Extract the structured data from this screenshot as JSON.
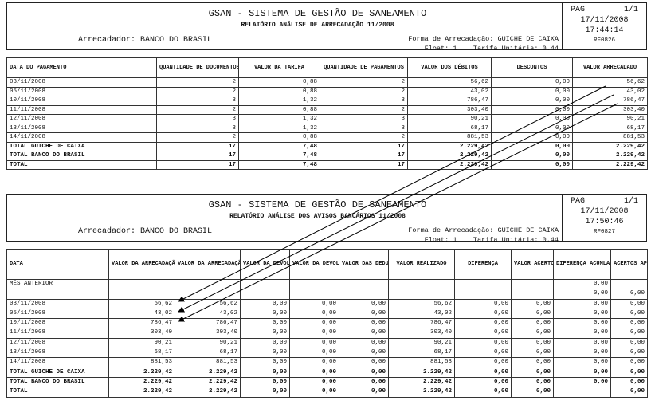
{
  "report1": {
    "title": "GSAN - SISTEMA DE GESTÃO DE SANEAMENTO",
    "subtitle": "RELATÓRIO ANÁLISE DE ARRECADAÇÃO 11/2008",
    "arrecadador": "Arrecadador: BANCO DO BRASIL",
    "forma": "Forma de Arrecadação: GUICHE DE CAIXA",
    "float": "Float: 1",
    "tarifa": "Tarifa Unitária: 0.44",
    "pag_label": "PAG",
    "pag": "1/1",
    "date": "17/11/2008",
    "time": "17:44:14",
    "code": "RF0826",
    "columns": [
      "DATA DO PAGAMENTO",
      "QUANTIDADE DE DOCUMENTOS",
      "VALOR DA TARIFA",
      "QUANTIDADE DE PAGAMENTOS",
      "VALOR DOS DÉBITOS",
      "DESCONTOS",
      "VALOR ARRECADADO"
    ],
    "rows": [
      [
        "03/11/2008",
        "2",
        "0,88",
        "2",
        "56,62",
        "0,00",
        "56,62"
      ],
      [
        "05/11/2008",
        "2",
        "0,88",
        "2",
        "43,02",
        "0,00",
        "43,02"
      ],
      [
        "10/11/2008",
        "3",
        "1,32",
        "3",
        "786,47",
        "0,00",
        "786,47"
      ],
      [
        "11/11/2008",
        "2",
        "0,88",
        "2",
        "303,40",
        "0,00",
        "303,40"
      ],
      [
        "12/11/2008",
        "3",
        "1,32",
        "3",
        "90,21",
        "0,00",
        "90,21"
      ],
      [
        "13/11/2008",
        "3",
        "1,32",
        "3",
        "68,17",
        "0,00",
        "68,17"
      ],
      [
        "14/11/2008",
        "2",
        "0,88",
        "2",
        "881,53",
        "0,00",
        "881,53"
      ]
    ],
    "totals": [
      [
        "TOTAL GUICHE DE CAIXA",
        "17",
        "7,48",
        "17",
        "2.229,42",
        "0,00",
        "2.229,42"
      ],
      [
        "TOTAL BANCO DO BRASIL",
        "17",
        "7,48",
        "17",
        "2.229,42",
        "0,00",
        "2.229,42"
      ],
      [
        "TOTAL",
        "17",
        "7,48",
        "17",
        "2.229,42",
        "0,00",
        "2.229,42"
      ]
    ]
  },
  "report2": {
    "title": "GSAN - SISTEMA DE GESTÃO DE SANEAMENTO",
    "subtitle": "RELATÓRIO ANÁLISE DOS AVISOS BANCÁRIOS 11/2008",
    "arrecadador": "Arrecadador: BANCO DO BRASIL",
    "forma": "Forma de Arrecadação: GUICHE DE CAIXA",
    "float": "Float: 1",
    "tarifa": "Tarifa Unitária: 0.44",
    "pag_label": "PAG",
    "pag": "1/1",
    "date": "17/11/2008",
    "time": "17:50:46",
    "code": "RF0827",
    "columns": [
      "DATA",
      "VALOR DA ARRECADAÇÃO CALCULADO",
      "VALOR DA ARRECADAÇÃO INFORMADO",
      "VALOR DA DEVOLUÇÃO CALCULADO",
      "VALOR DA DEVOLUÇÃO INFORMADO",
      "VALOR DAS DEDUÇÕES",
      "VALOR REALIZADO",
      "DIFERENÇA",
      "VALOR ACERTOS",
      "DIFERENÇA ACUMLADA",
      "ACERTOS APLICADOS"
    ],
    "rows": [
      [
        "MÊS ANTERIOR",
        "",
        "",
        "",
        "",
        "",
        "",
        "",
        "",
        "0,00",
        ""
      ],
      [
        "",
        "",
        "",
        "",
        "",
        "",
        "",
        "",
        "",
        "0,00",
        "0,00"
      ],
      [
        "03/11/2008",
        "56,62",
        "56,62",
        "0,00",
        "0,00",
        "0,00",
        "56,62",
        "0,00",
        "0,00",
        "0,00",
        "0,00"
      ],
      [
        "05/11/2008",
        "43,02",
        "43,02",
        "0,00",
        "0,00",
        "0,00",
        "43,02",
        "0,00",
        "0,00",
        "0,00",
        "0,00"
      ],
      [
        "10/11/2008",
        "786,47",
        "786,47",
        "0,00",
        "0,00",
        "0,00",
        "786,47",
        "0,00",
        "0,00",
        "0,00",
        "0,00"
      ],
      [
        "11/11/2008",
        "303,40",
        "303,40",
        "0,00",
        "0,00",
        "0,00",
        "303,40",
        "0,00",
        "0,00",
        "0,00",
        "0,00"
      ],
      [
        "12/11/2008",
        "90,21",
        "90,21",
        "0,00",
        "0,00",
        "0,00",
        "90,21",
        "0,00",
        "0,00",
        "0,00",
        "0,00"
      ],
      [
        "13/11/2008",
        "68,17",
        "68,17",
        "0,00",
        "0,00",
        "0,00",
        "68,17",
        "0,00",
        "0,00",
        "0,00",
        "0,00"
      ],
      [
        "14/11/2008",
        "881,53",
        "881,53",
        "0,00",
        "0,00",
        "0,00",
        "881,53",
        "0,00",
        "0,00",
        "0,00",
        "0,00"
      ]
    ],
    "totals": [
      [
        "TOTAL GUICHE DE CAIXA",
        "2.229,42",
        "2.229,42",
        "0,00",
        "0,00",
        "0,00",
        "2.229,42",
        "0,00",
        "0,00",
        "0,00",
        "0,00"
      ],
      [
        "TOTAL BANCO DO BRASIL",
        "2.229,42",
        "2.229,42",
        "0,00",
        "0,00",
        "0,00",
        "2.229,42",
        "0,00",
        "0,00",
        "0,00",
        "0,00"
      ],
      [
        "TOTAL",
        "2.229,42",
        "2.229,42",
        "0,00",
        "0,00",
        "0,00",
        "2.229,42",
        "0,00",
        "0,00",
        "",
        "0,00"
      ]
    ]
  },
  "annotation": {
    "arrow_color": "#000000",
    "arrow_icon": "arrow-icon"
  }
}
